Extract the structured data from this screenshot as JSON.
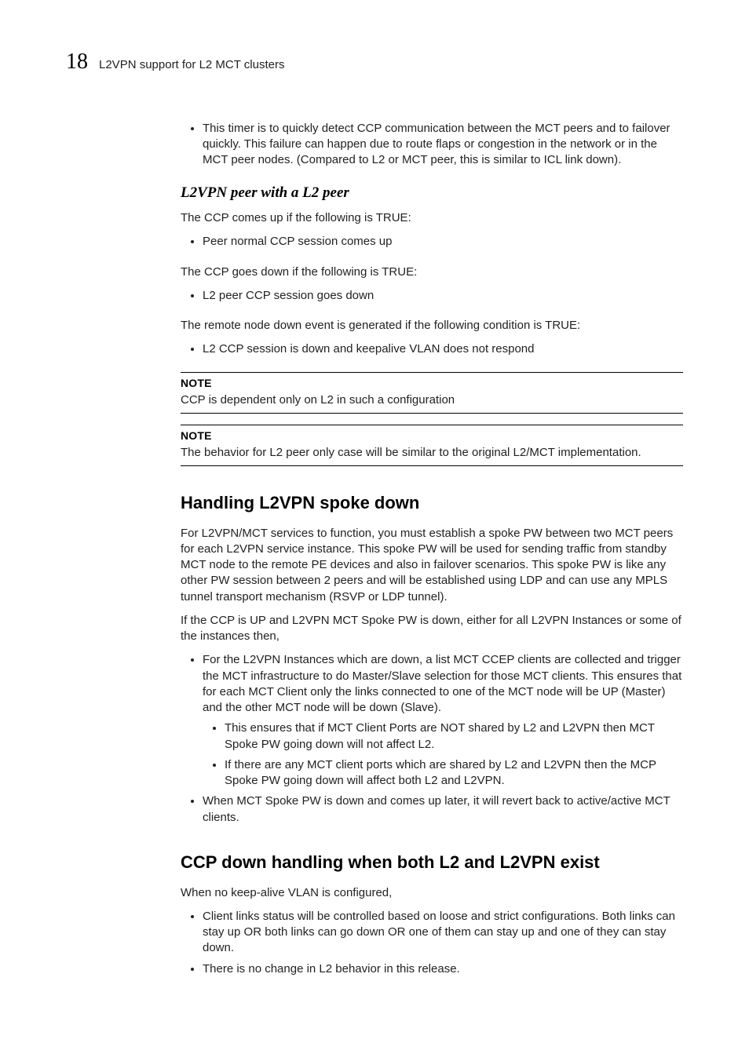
{
  "header": {
    "chapter_number": "18",
    "chapter_title": "L2VPN support for L2 MCT clusters"
  },
  "intro_bullets": [
    "This timer is to quickly detect CCP communication between the MCT peers and to failover quickly. This failure can happen due to route flaps or congestion in the network or in the MCT peer nodes. (Compared to L2 or MCT peer, this is similar to ICL link down)."
  ],
  "section_l2vpn_peer": {
    "heading": "L2VPN peer with a L2 peer",
    "p1": "The CCP comes up if the following is TRUE:",
    "b1": [
      "Peer normal CCP session comes up"
    ],
    "p2": "The CCP goes down if the following is TRUE:",
    "b2": [
      "L2 peer CCP session goes down"
    ],
    "p3": "The remote node down event is generated if the following condition is TRUE:",
    "b3": [
      "L2 CCP session is down and keepalive VLAN does not respond"
    ]
  },
  "note1": {
    "label": "NOTE",
    "text": "CCP is dependent only on L2 in such a configuration"
  },
  "note2": {
    "label": "NOTE",
    "text": "The behavior for L2 peer only case will be similar to the original L2/MCT implementation."
  },
  "section_spoke": {
    "heading": "Handling L2VPN spoke down",
    "p1": "For L2VPN/MCT services to function, you must establish a spoke PW between two MCT peers for each L2VPN service instance. This spoke PW will be used for sending traffic from standby MCT node to the remote PE devices and also in failover scenarios. This spoke PW is like any other PW session between 2 peers and will be established using LDP and can use any MPLS tunnel transport mechanism (RSVP or LDP tunnel).",
    "p2": "If the CCP is UP and L2VPN MCT Spoke PW is down, either for all L2VPN Instances or some of the instances then,",
    "bullets": [
      {
        "text": "For the L2VPN Instances which are down, a list MCT CCEP clients are collected and trigger the MCT infrastructure to do Master/Slave selection for those MCT clients. This ensures that for each MCT Client only the links connected to one of the MCT node will be UP (Master) and the other MCT node will be down (Slave).",
        "sub": [
          "This ensures that if MCT Client Ports are NOT shared by L2 and L2VPN then MCT Spoke PW going down will not affect L2.",
          "If there are any MCT client ports which are shared by L2 and L2VPN then the MCP Spoke PW going down will affect both L2 and L2VPN."
        ]
      },
      {
        "text": "When MCT Spoke PW is down and comes up later, it will revert back to active/active MCT clients.",
        "sub": []
      }
    ]
  },
  "section_ccp_down": {
    "heading": "CCP down handling when both L2 and L2VPN exist",
    "p1": "When no keep-alive VLAN is configured,",
    "bullets": [
      "Client links status will be controlled based on loose and strict configurations. Both links can stay up OR both links can go down OR one of them can stay up and one of they can stay down.",
      "There is no change in L2 behavior in this release."
    ]
  }
}
